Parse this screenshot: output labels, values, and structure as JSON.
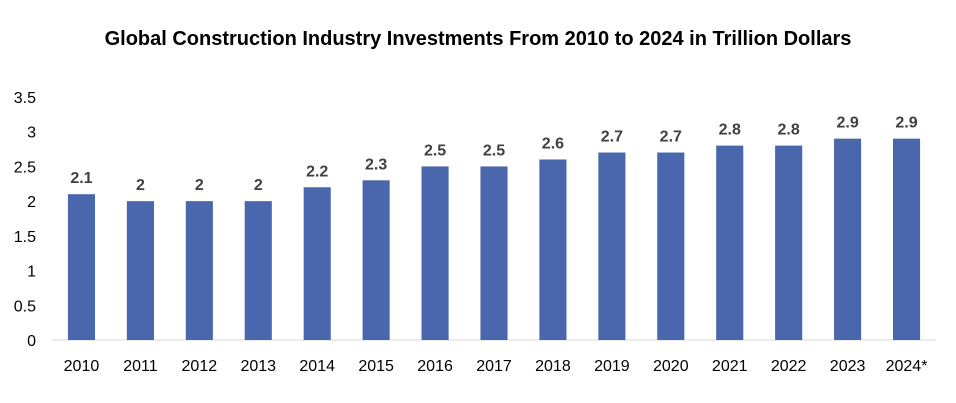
{
  "chart_data": {
    "type": "bar",
    "title": "Global Construction Industry Investments From 2010 to 2024 in Trillion Dollars",
    "categories": [
      "2010",
      "2011",
      "2012",
      "2013",
      "2014",
      "2015",
      "2016",
      "2017",
      "2018",
      "2019",
      "2020",
      "2021",
      "2022",
      "2023",
      "2024*"
    ],
    "values": [
      2.1,
      2,
      2,
      2,
      2.2,
      2.3,
      2.5,
      2.5,
      2.6,
      2.7,
      2.7,
      2.8,
      2.8,
      2.9,
      2.9
    ],
    "value_labels": [
      "2.1",
      "2",
      "2",
      "2",
      "2.2",
      "2.3",
      "2.5",
      "2.5",
      "2.6",
      "2.7",
      "2.7",
      "2.8",
      "2.8",
      "2.9",
      "2.9"
    ],
    "y_ticks": [
      "0",
      "0.5",
      "1",
      "1.5",
      "2",
      "2.5",
      "3",
      "3.5"
    ],
    "ylim": [
      0,
      3.5
    ],
    "grid": false,
    "legend": "none",
    "bar_color": "#4a66ad",
    "axis_color": "#d9d9d9"
  }
}
